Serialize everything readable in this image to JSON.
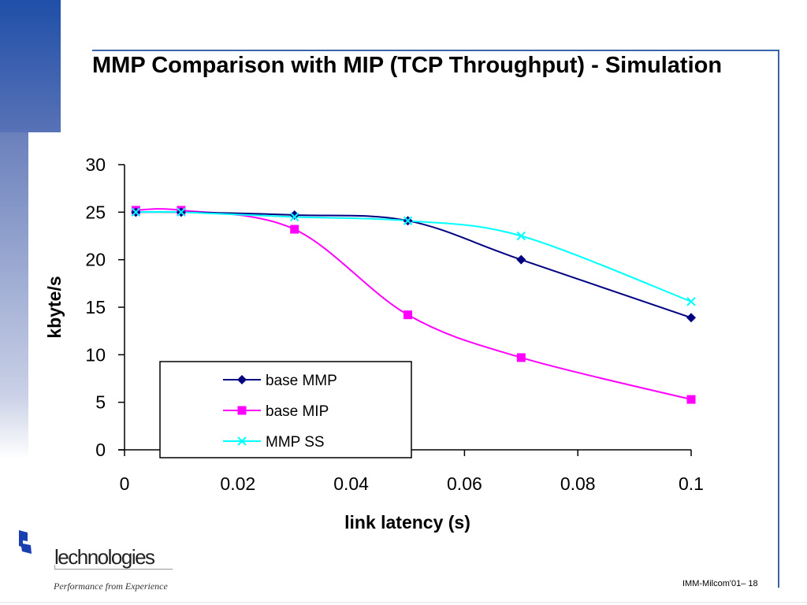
{
  "slide": {
    "title": "MMP Comparison with MIP (TCP Throughput) - Simulation",
    "footer": "IMM-Milcom'01– 18",
    "logo": {
      "icon": "company-logo-icon",
      "name": "lechnologies",
      "tagline": "Performance from Experience"
    },
    "accent_color": "#3a63ad"
  },
  "chart_data": {
    "type": "line",
    "title": "",
    "xlabel": "link latency (s)",
    "ylabel": "kbyte/s",
    "xlim": [
      0,
      0.1
    ],
    "ylim": [
      0,
      30
    ],
    "x_ticks": [
      "0",
      "0.02",
      "0.04",
      "0.06",
      "0.08",
      "0.1"
    ],
    "x_tick_values": [
      0,
      0.02,
      0.04,
      0.06,
      0.08,
      0.1
    ],
    "y_ticks": [
      "0",
      "5",
      "10",
      "15",
      "20",
      "25",
      "30"
    ],
    "y_tick_values": [
      0,
      5,
      10,
      15,
      20,
      25,
      30
    ],
    "grid": false,
    "legend_position": "bottom-left",
    "x": [
      0.002,
      0.01,
      0.03,
      0.05,
      0.07,
      0.1
    ],
    "series": [
      {
        "name": "base MMP",
        "color": "#000080",
        "marker": "diamond",
        "values": [
          25.0,
          25.0,
          24.7,
          24.1,
          20.0,
          13.9
        ]
      },
      {
        "name": "base MIP",
        "color": "#ff00ff",
        "marker": "square",
        "values": [
          25.2,
          25.2,
          23.2,
          14.2,
          9.7,
          5.3
        ]
      },
      {
        "name": "MMP SS",
        "color": "#00ffff",
        "marker": "x",
        "values": [
          25.0,
          25.0,
          24.5,
          24.1,
          22.5,
          15.6
        ]
      }
    ]
  }
}
